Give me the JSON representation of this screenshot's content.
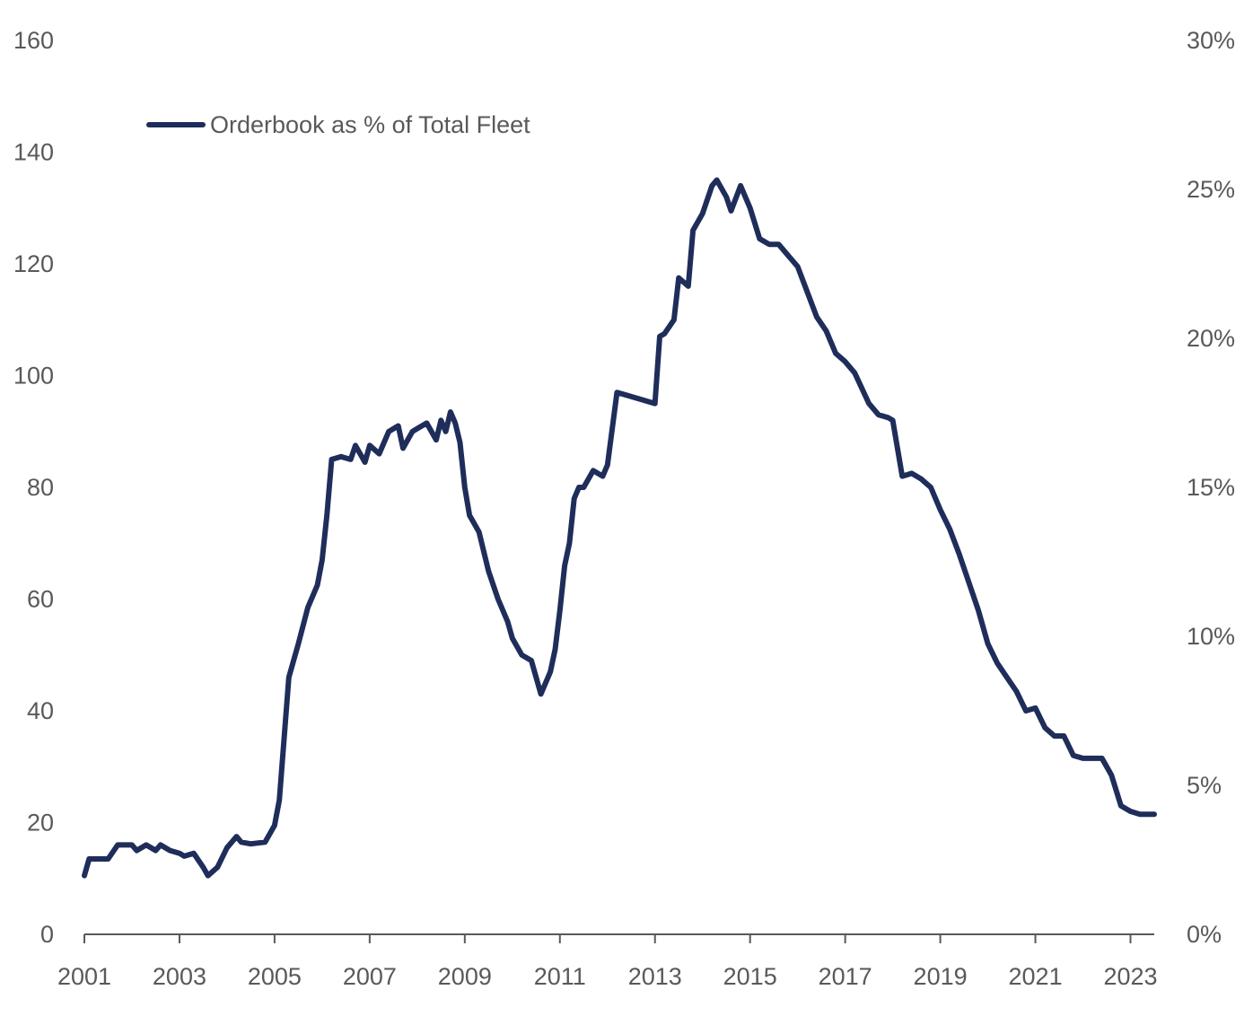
{
  "chart_data": {
    "type": "line",
    "title": "",
    "xlabel": "",
    "ylabel": "",
    "legend": {
      "position": "top-left",
      "label": "Orderbook as % of Total Fleet"
    },
    "series": [
      {
        "name": "Orderbook as % of Total Fleet",
        "color": "#1f2d5a",
        "axis": "left",
        "x": [
          2001.0,
          2001.1,
          2001.5,
          2001.7,
          2002.0,
          2002.1,
          2002.3,
          2002.5,
          2002.6,
          2002.8,
          2003.0,
          2003.1,
          2003.3,
          2003.5,
          2003.6,
          2003.8,
          2004.0,
          2004.2,
          2004.3,
          2004.5,
          2004.8,
          2005.0,
          2005.1,
          2005.2,
          2005.3,
          2005.5,
          2005.7,
          2005.9,
          2006.0,
          2006.1,
          2006.2,
          2006.4,
          2006.6,
          2006.7,
          2006.9,
          2007.0,
          2007.2,
          2007.4,
          2007.6,
          2007.7,
          2007.9,
          2008.0,
          2008.2,
          2008.4,
          2008.5,
          2008.6,
          2008.7,
          2008.8,
          2008.9,
          2009.0,
          2009.1,
          2009.3,
          2009.5,
          2009.7,
          2009.9,
          2010.0,
          2010.2,
          2010.4,
          2010.6,
          2010.8,
          2010.9,
          2011.0,
          2011.1,
          2011.2,
          2011.3,
          2011.4,
          2011.5,
          2011.7,
          2011.9,
          2012.0,
          2012.2,
          2012.4,
          2012.6,
          2012.8,
          2013.0,
          2013.1,
          2013.2,
          2013.4,
          2013.5,
          2013.7,
          2013.8,
          2014.0,
          2014.2,
          2014.3,
          2014.5,
          2014.6,
          2014.8,
          2015.0,
          2015.2,
          2015.4,
          2015.6,
          2015.8,
          2016.0,
          2016.2,
          2016.4,
          2016.6,
          2016.8,
          2017.0,
          2017.2,
          2017.5,
          2017.7,
          2017.9,
          2018.0,
          2018.2,
          2018.4,
          2018.6,
          2018.8,
          2019.0,
          2019.2,
          2019.4,
          2019.6,
          2019.8,
          2020.0,
          2020.2,
          2020.4,
          2020.6,
          2020.8,
          2021.0,
          2021.2,
          2021.4,
          2021.6,
          2021.8,
          2022.0,
          2022.2,
          2022.4,
          2022.6,
          2022.8,
          2023.0,
          2023.2,
          2023.5
        ],
        "y": [
          10.5,
          13.5,
          13.5,
          16.0,
          16.0,
          15.0,
          16.0,
          15.0,
          16.0,
          15.0,
          14.5,
          14.0,
          14.5,
          12.0,
          10.5,
          12.0,
          15.5,
          17.5,
          16.5,
          16.2,
          16.5,
          19.5,
          24.0,
          35.0,
          46.0,
          52.0,
          58.5,
          62.5,
          67.0,
          75.0,
          85.0,
          85.5,
          85.0,
          87.5,
          84.5,
          87.5,
          86.0,
          90.0,
          91.0,
          87.0,
          90.0,
          90.5,
          91.5,
          88.5,
          92.0,
          90.0,
          93.5,
          91.5,
          88.0,
          80.0,
          75.0,
          72.0,
          65.0,
          60.0,
          56.0,
          53.0,
          50.0,
          49.0,
          43.0,
          47.0,
          51.0,
          58.0,
          66.0,
          70.0,
          78.0,
          80.0,
          80.0,
          83.0,
          82.0,
          84.0,
          97.0,
          96.5,
          96.0,
          95.5,
          95.0,
          107.0,
          107.5,
          110.0,
          117.5,
          116.0,
          126.0,
          129.0,
          134.0,
          135.0,
          132.0,
          129.5,
          134.0,
          130.0,
          124.5,
          123.5,
          123.5,
          121.5,
          119.5,
          115.0,
          110.5,
          108.0,
          104.0,
          102.5,
          100.5,
          95.0,
          93.0,
          92.5,
          92.0,
          82.0,
          82.5,
          81.5,
          80.0,
          76.0,
          72.5,
          68.0,
          63.0,
          58.0,
          52.0,
          48.5,
          46.0,
          43.5,
          40.0,
          40.5,
          37.0,
          35.5,
          35.5,
          32.0,
          31.5,
          31.5,
          31.5,
          28.5,
          23.0,
          22.0,
          21.5,
          21.5
        ]
      }
    ],
    "xlim": [
      2001,
      2023.5
    ],
    "x_ticks": [
      "2001",
      "2003",
      "2005",
      "2007",
      "2009",
      "2011",
      "2013",
      "2015",
      "2017",
      "2019",
      "2021",
      "2023"
    ],
    "x_tick_values": [
      2001,
      2003,
      2005,
      2007,
      2009,
      2011,
      2013,
      2015,
      2017,
      2019,
      2021,
      2023
    ],
    "ylim": [
      0,
      160
    ],
    "y_ticks": [
      "0",
      "20",
      "40",
      "60",
      "80",
      "100",
      "120",
      "140",
      "160"
    ],
    "y_tick_values": [
      0,
      20,
      40,
      60,
      80,
      100,
      120,
      140,
      160
    ],
    "y2lim": [
      0,
      30
    ],
    "y2_ticks": [
      "0%",
      "5%",
      "10%",
      "15%",
      "20%",
      "25%",
      "30%"
    ],
    "y2_tick_values": [
      0,
      5,
      10,
      15,
      20,
      25,
      30
    ],
    "grid": false
  }
}
